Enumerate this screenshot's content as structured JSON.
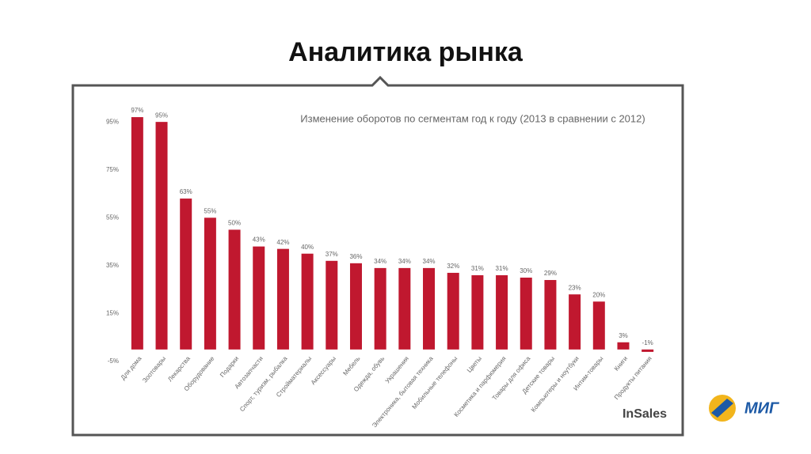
{
  "slide_title": "Аналитика рынка",
  "chart_data": {
    "type": "bar",
    "title": "Изменение оборотов по сегментам год к году (2013 в сравнении с 2012)",
    "categories": [
      "Для дома",
      "Зоотовары",
      "Лекарства",
      "Оборудование",
      "Подарки",
      "Автозапчасти",
      "Спорт, туризм, рыбалка",
      "Стройматериалы",
      "Аксессуары",
      "Мебель",
      "Одежда, обувь",
      "Украшения",
      "Электроника, бытовая техника",
      "Мобильные телефоны",
      "Цветы",
      "Косметика и парфюмерия",
      "Товары для офиса",
      "Детские товары",
      "Компьютеры и ноутбуки",
      "Интим-товары",
      "Книги",
      "Продукты питания"
    ],
    "values": [
      97,
      95,
      63,
      55,
      50,
      43,
      42,
      40,
      37,
      36,
      34,
      34,
      34,
      32,
      31,
      31,
      30,
      29,
      23,
      20,
      3,
      -1
    ],
    "value_labels": [
      "97%",
      "95%",
      "63%",
      "55%",
      "50%",
      "43%",
      "42%",
      "40%",
      "37%",
      "36%",
      "34%",
      "34%",
      "34%",
      "32%",
      "31%",
      "31%",
      "30%",
      "29%",
      "23%",
      "20%",
      "3%",
      "-1%"
    ],
    "color": "#c0182f",
    "ylim": [
      -5,
      100
    ],
    "yticks": [
      {
        "value": -5,
        "label": "-5%"
      },
      {
        "value": 15,
        "label": "15%"
      },
      {
        "value": 35,
        "label": "35%"
      },
      {
        "value": 55,
        "label": "55%"
      },
      {
        "value": 75,
        "label": "75%"
      },
      {
        "value": 95,
        "label": "95%"
      }
    ],
    "grid": false
  },
  "source_logo": "InSales",
  "brand_logo": "МИГ"
}
